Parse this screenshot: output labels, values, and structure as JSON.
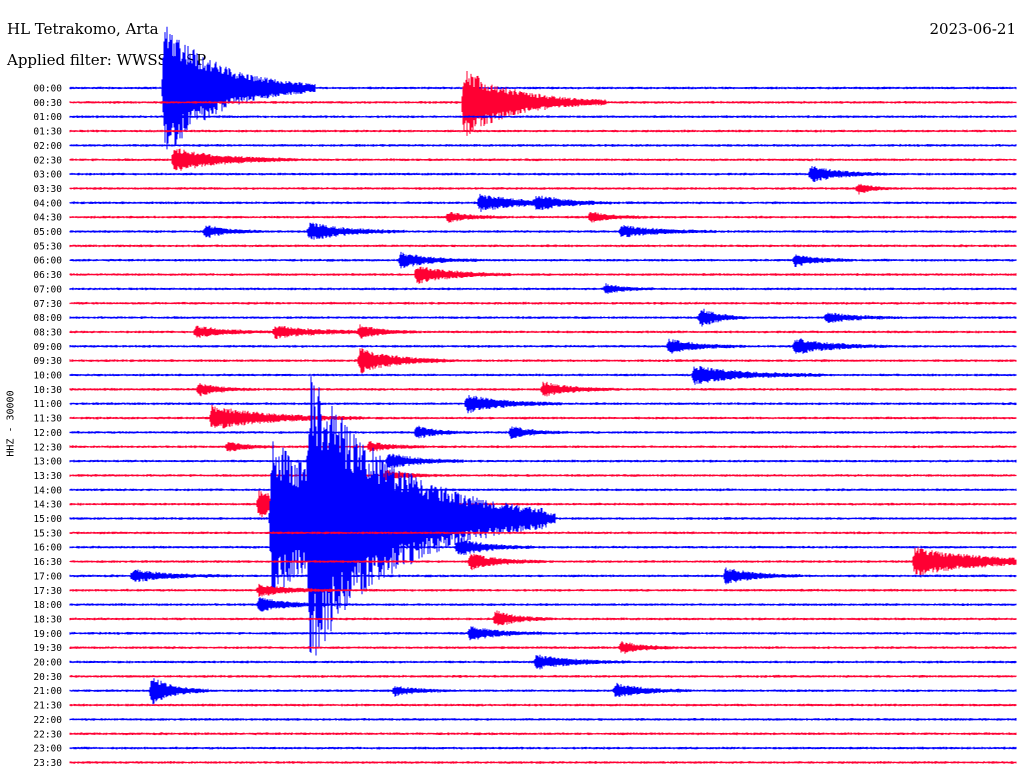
{
  "header": {
    "station": "HL Tetrakomo, Arta",
    "filter": "Applied filter: WWSSN-SP",
    "date": "2023-06-21",
    "channel": "HHZ - 30000"
  },
  "colors": {
    "even_hour": "#0000ff",
    "half_hour": "#ff0033"
  },
  "chart_data": {
    "type": "line",
    "title": "HL Tetrakomo, Arta",
    "subtitle": "Applied filter: WWSSN-SP",
    "date": "2023-06-21",
    "ylabel": "HHZ - 30000",
    "row_labels": [
      "00:00",
      "00:30",
      "01:00",
      "01:30",
      "02:00",
      "02:30",
      "03:00",
      "03:30",
      "04:00",
      "04:30",
      "05:00",
      "05:30",
      "06:00",
      "06:30",
      "07:00",
      "07:30",
      "08:00",
      "08:30",
      "09:00",
      "09:30",
      "10:00",
      "10:30",
      "11:00",
      "11:30",
      "12:00",
      "12:30",
      "13:00",
      "13:30",
      "14:00",
      "14:30",
      "15:00",
      "15:30",
      "16:00",
      "16:30",
      "17:00",
      "17:30",
      "18:00",
      "18:30",
      "19:00",
      "19:30",
      "20:00",
      "20:30",
      "21:00",
      "21:30",
      "22:00",
      "22:30",
      "23:00",
      "23:30"
    ],
    "x_unit": "minutes",
    "x_range": [
      0,
      30
    ],
    "events": [
      {
        "row": 0,
        "min": 3.0,
        "amp": 70,
        "dur": 1.6
      },
      {
        "row": 1,
        "min": 12.5,
        "amp": 35,
        "dur": 1.5
      },
      {
        "row": 5,
        "min": 3.3,
        "amp": 12,
        "dur": 1.3
      },
      {
        "row": 6,
        "min": 23.5,
        "amp": 8,
        "dur": 0.8
      },
      {
        "row": 7,
        "min": 25.0,
        "amp": 5,
        "dur": 0.4
      },
      {
        "row": 8,
        "min": 13.0,
        "amp": 8,
        "dur": 1.2
      },
      {
        "row": 8,
        "min": 14.8,
        "amp": 6,
        "dur": 0.8
      },
      {
        "row": 9,
        "min": 12.0,
        "amp": 5,
        "dur": 0.6
      },
      {
        "row": 9,
        "min": 16.5,
        "amp": 5,
        "dur": 0.6
      },
      {
        "row": 10,
        "min": 4.3,
        "amp": 6,
        "dur": 0.6
      },
      {
        "row": 10,
        "min": 7.6,
        "amp": 9,
        "dur": 1.0
      },
      {
        "row": 10,
        "min": 17.5,
        "amp": 6,
        "dur": 1.0
      },
      {
        "row": 12,
        "min": 10.5,
        "amp": 8,
        "dur": 0.8
      },
      {
        "row": 12,
        "min": 23.0,
        "amp": 6,
        "dur": 0.6
      },
      {
        "row": 13,
        "min": 11.0,
        "amp": 9,
        "dur": 1.0
      },
      {
        "row": 14,
        "min": 17.0,
        "amp": 5,
        "dur": 0.5
      },
      {
        "row": 16,
        "min": 20.0,
        "amp": 10,
        "dur": 0.5
      },
      {
        "row": 16,
        "min": 24.0,
        "amp": 5,
        "dur": 0.8
      },
      {
        "row": 17,
        "min": 4.0,
        "amp": 6,
        "dur": 0.8
      },
      {
        "row": 17,
        "min": 6.5,
        "amp": 6,
        "dur": 1.2
      },
      {
        "row": 17,
        "min": 9.2,
        "amp": 6,
        "dur": 0.6
      },
      {
        "row": 18,
        "min": 19.0,
        "amp": 7,
        "dur": 0.8
      },
      {
        "row": 18,
        "min": 23.0,
        "amp": 8,
        "dur": 1.0
      },
      {
        "row": 19,
        "min": 9.2,
        "amp": 12,
        "dur": 1.0
      },
      {
        "row": 20,
        "min": 19.8,
        "amp": 9,
        "dur": 1.4
      },
      {
        "row": 21,
        "min": 4.1,
        "amp": 6,
        "dur": 0.6
      },
      {
        "row": 21,
        "min": 15.0,
        "amp": 7,
        "dur": 0.8
      },
      {
        "row": 22,
        "min": 12.6,
        "amp": 9,
        "dur": 1.0
      },
      {
        "row": 23,
        "min": 4.5,
        "amp": 12,
        "dur": 1.6
      },
      {
        "row": 24,
        "min": 11.0,
        "amp": 6,
        "dur": 0.6
      },
      {
        "row": 24,
        "min": 14.0,
        "amp": 6,
        "dur": 0.6
      },
      {
        "row": 25,
        "min": 5.0,
        "amp": 5,
        "dur": 0.5
      },
      {
        "row": 25,
        "min": 9.5,
        "amp": 5,
        "dur": 0.6
      },
      {
        "row": 26,
        "min": 10.1,
        "amp": 8,
        "dur": 0.8
      },
      {
        "row": 27,
        "min": 10.0,
        "amp": 5,
        "dur": 0.6
      },
      {
        "row": 29,
        "min": 6.0,
        "amp": 14,
        "dur": 0.8
      },
      {
        "row": 30,
        "min": 6.4,
        "amp": 80,
        "dur": 3.0
      },
      {
        "row": 30,
        "min": 7.6,
        "amp": 95,
        "dur": 2.5
      },
      {
        "row": 32,
        "min": 12.3,
        "amp": 9,
        "dur": 0.8
      },
      {
        "row": 33,
        "min": 12.7,
        "amp": 8,
        "dur": 0.8
      },
      {
        "row": 33,
        "min": 26.8,
        "amp": 14,
        "dur": 2.0
      },
      {
        "row": 34,
        "min": 2.0,
        "amp": 6,
        "dur": 1.0
      },
      {
        "row": 34,
        "min": 20.8,
        "amp": 8,
        "dur": 0.8
      },
      {
        "row": 35,
        "min": 6.0,
        "amp": 6,
        "dur": 0.8
      },
      {
        "row": 36,
        "min": 6.0,
        "amp": 7,
        "dur": 0.8
      },
      {
        "row": 37,
        "min": 13.5,
        "amp": 8,
        "dur": 0.6
      },
      {
        "row": 38,
        "min": 12.7,
        "amp": 7,
        "dur": 0.8
      },
      {
        "row": 39,
        "min": 17.5,
        "amp": 6,
        "dur": 0.6
      },
      {
        "row": 40,
        "min": 14.8,
        "amp": 7,
        "dur": 1.0
      },
      {
        "row": 42,
        "min": 2.6,
        "amp": 14,
        "dur": 0.6
      },
      {
        "row": 42,
        "min": 10.3,
        "amp": 5,
        "dur": 0.6
      },
      {
        "row": 42,
        "min": 17.3,
        "amp": 7,
        "dur": 0.8
      }
    ]
  }
}
